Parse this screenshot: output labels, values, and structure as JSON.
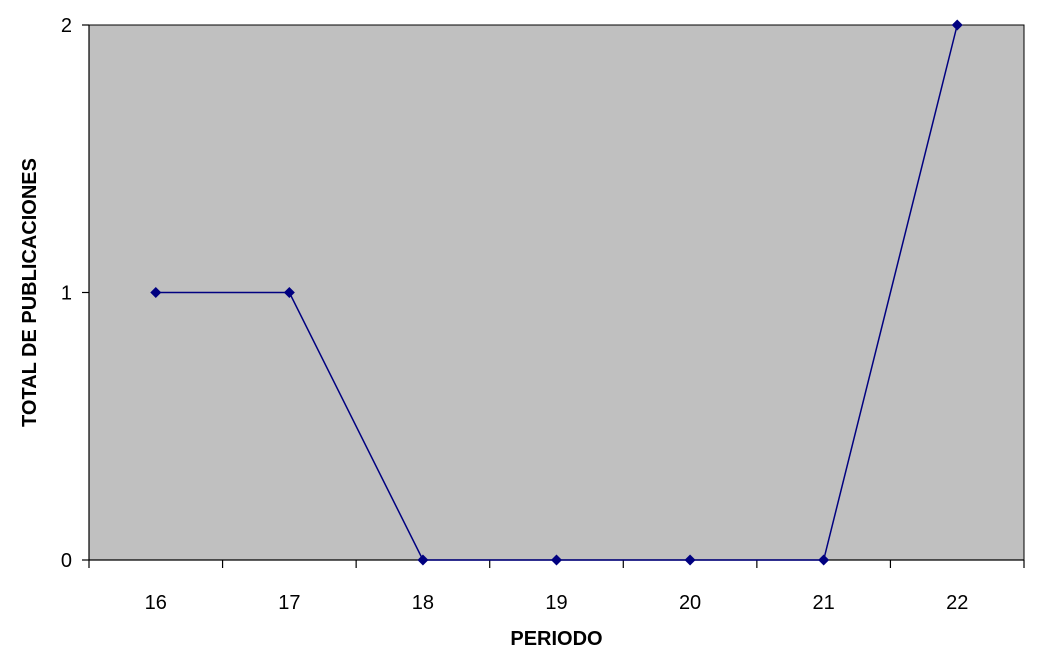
{
  "chart_data": {
    "type": "line",
    "title": "",
    "xlabel": "PERIODO",
    "ylabel": "TOTAL DE PUBLICACIONES",
    "categories": [
      "16",
      "17",
      "18",
      "19",
      "20",
      "21",
      "22"
    ],
    "series": [
      {
        "values": [
          1,
          1,
          0,
          0,
          0,
          0,
          2
        ]
      }
    ],
    "ylim": [
      0,
      2
    ],
    "yticks": [
      "0",
      "1",
      "2"
    ],
    "grid": false,
    "legend": "none",
    "colors": {
      "plot_background": "#c0c0c0",
      "series_line": "#000080",
      "marker": "#000080",
      "axis": "#000000"
    }
  }
}
